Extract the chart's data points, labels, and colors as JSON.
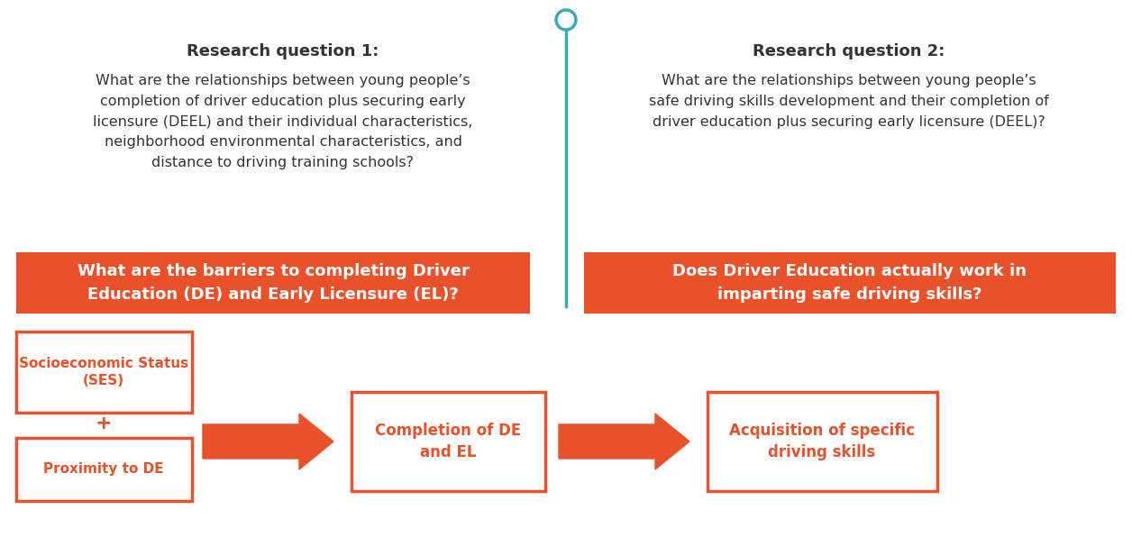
{
  "bg_color": "#ffffff",
  "orange": "#E8512A",
  "teal": "#3AACB8",
  "text_dark": "#333333",
  "fig_width": 12.56,
  "fig_height": 5.96,
  "rq1_title": "Research question 1:",
  "rq1_body": "What are the relationships between young people’s\ncompletion of driver education plus securing early\nlicensure (DEEL) and their individual characteristics,\nneighborhood environmental characteristics, and\ndistance to driving training schools?",
  "rq2_title": "Research question 2:",
  "rq2_body": "What are the relationships between young people’s\nsafe driving skills development and their completion of\ndriver education plus securing early licensure (DEEL)?",
  "orange_box1_text": "What are the barriers to completing Driver\nEducation (DE) and Early Licensure (EL)?",
  "orange_box2_text": "Does Driver Education actually work in\nimparting safe driving skills?",
  "flow_box1_text": "Socioeconomic Status\n(SES)",
  "flow_box1_plus": "+",
  "flow_box2_text": "Proximity to DE",
  "flow_box3_text": "Completion of DE\nand EL",
  "flow_box4_text": "Acquisition of specific\ndriving skills"
}
